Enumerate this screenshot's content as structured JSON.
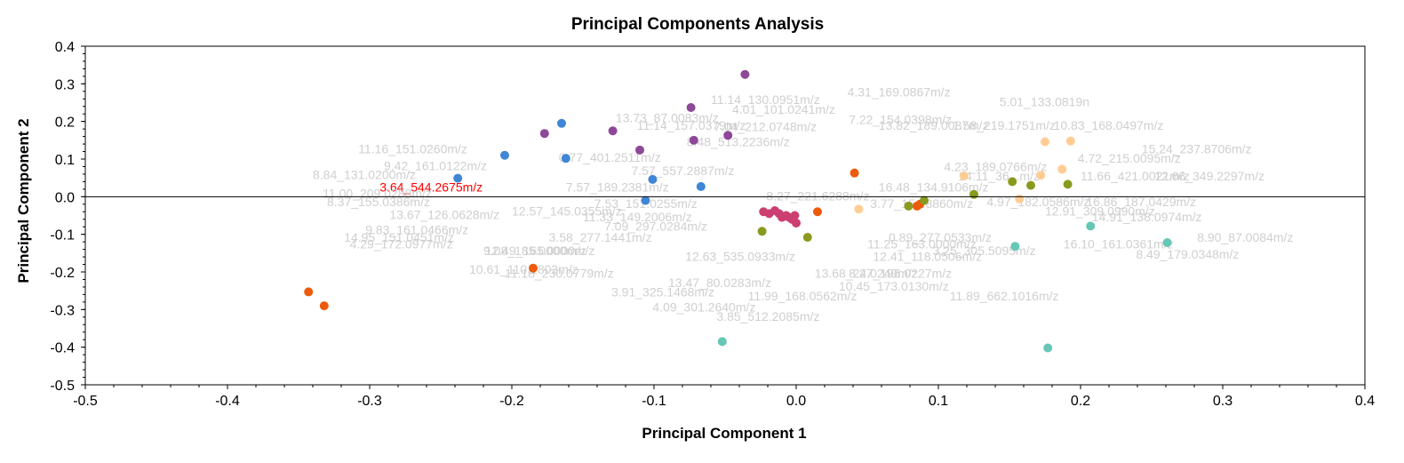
{
  "chart_data": {
    "type": "scatter",
    "title": "Principal Components Analysis",
    "xlabel": "Principal Component 1",
    "ylabel": "Principal Component 2",
    "xlim": [
      -0.5,
      0.4
    ],
    "ylim": [
      -0.5,
      0.4
    ],
    "xticks": [
      "-0.5",
      "-0.4",
      "-0.3",
      "-0.2",
      "-0.1",
      "0.0",
      "0.1",
      "0.2",
      "0.3",
      "0.4"
    ],
    "yticks": [
      "0.4",
      "0.3",
      "0.2",
      "0.1",
      "0.0",
      "-0.1",
      "-0.2",
      "-0.3",
      "-0.4",
      "-0.5"
    ],
    "grid": false,
    "legend": "none",
    "zero_line": true,
    "series": [
      {
        "color": "#8e4898",
        "points": [
          [
            -0.036,
            0.325
          ],
          [
            -0.074,
            0.237
          ],
          [
            -0.129,
            0.175
          ],
          [
            -0.177,
            0.168
          ],
          [
            -0.048,
            0.163
          ],
          [
            -0.072,
            0.15
          ],
          [
            -0.11,
            0.124
          ]
        ]
      },
      {
        "color": "#3f86d6",
        "points": [
          [
            -0.165,
            0.195
          ],
          [
            -0.205,
            0.11
          ],
          [
            -0.162,
            0.102
          ],
          [
            -0.238,
            0.049
          ],
          [
            -0.101,
            0.046
          ],
          [
            -0.067,
            0.027
          ],
          [
            -0.106,
            -0.01
          ]
        ]
      },
      {
        "color": "#ee5a0c",
        "points": [
          [
            -0.343,
            -0.253
          ],
          [
            -0.332,
            -0.29
          ],
          [
            -0.185,
            -0.19
          ],
          [
            0.041,
            0.063
          ],
          [
            0.015,
            -0.04
          ],
          [
            0.087,
            -0.02
          ],
          [
            0.085,
            -0.025
          ]
        ]
      },
      {
        "color": "#cc3f70",
        "points": [
          [
            -0.023,
            -0.04
          ],
          [
            -0.019,
            -0.045
          ],
          [
            -0.015,
            -0.037
          ],
          [
            -0.012,
            -0.045
          ],
          [
            -0.01,
            -0.055
          ],
          [
            -0.007,
            -0.05
          ],
          [
            -0.005,
            -0.055
          ],
          [
            -0.003,
            -0.06
          ],
          [
            -0.001,
            -0.05
          ],
          [
            0.0,
            -0.07
          ]
        ]
      },
      {
        "color": "#8a9a1e",
        "points": [
          [
            -0.024,
            -0.092
          ],
          [
            0.008,
            -0.108
          ],
          [
            0.079,
            -0.025
          ],
          [
            0.09,
            -0.01
          ],
          [
            0.125,
            0.006
          ],
          [
            0.152,
            0.04
          ],
          [
            0.165,
            0.03
          ],
          [
            0.191,
            0.033
          ]
        ]
      },
      {
        "color": "#ffcd94",
        "points": [
          [
            0.044,
            -0.033
          ],
          [
            0.118,
            0.055
          ],
          [
            0.157,
            -0.006
          ],
          [
            0.172,
            0.057
          ],
          [
            0.187,
            0.073
          ],
          [
            0.175,
            0.146
          ],
          [
            0.193,
            0.148
          ]
        ]
      },
      {
        "color": "#66c7b6",
        "points": [
          [
            -0.052,
            -0.385
          ],
          [
            0.154,
            -0.132
          ],
          [
            0.177,
            -0.402
          ],
          [
            0.207,
            -0.078
          ],
          [
            0.261,
            -0.122
          ]
        ]
      }
    ],
    "annotations": [
      {
        "text": "11.14_130.0951m/z",
        "x": -0.06,
        "y": 0.247
      },
      {
        "text": "4.01_101.0241m/z",
        "x": -0.045,
        "y": 0.22
      },
      {
        "text": "4.31_169.0867m/z",
        "x": 0.036,
        "y": 0.267
      },
      {
        "text": "5.01_133.0819n",
        "x": 0.143,
        "y": 0.24
      },
      {
        "text": "13.73_87.0083m/z",
        "x": -0.127,
        "y": 0.198
      },
      {
        "text": "7.22_154.0398m/z",
        "x": 0.037,
        "y": 0.193
      },
      {
        "text": "11.14_157.0379m/z",
        "x": -0.112,
        "y": 0.178
      },
      {
        "text": "7.04_212.0748m/z",
        "x": -0.058,
        "y": 0.175
      },
      {
        "text": "10.83_168.0497m/z",
        "x": 0.181,
        "y": 0.178
      },
      {
        "text": "13.82_189.0087m/z",
        "x": 0.058,
        "y": 0.178
      },
      {
        "text": "1.58_219.1751m/z",
        "x": 0.11,
        "y": 0.178
      },
      {
        "text": "8.48_513.2236m/z",
        "x": -0.077,
        "y": 0.134
      },
      {
        "text": "15.24_237.8706m/z",
        "x": 0.243,
        "y": 0.115
      },
      {
        "text": "11.16_151.0260m/z",
        "x": -0.308,
        "y": 0.115
      },
      {
        "text": "0.77_401.2511m/z",
        "x": -0.167,
        "y": 0.093
      },
      {
        "text": "4.72_215.0095m/z",
        "x": 0.198,
        "y": 0.09
      },
      {
        "text": "9.42_161.0122m/z",
        "x": -0.29,
        "y": 0.07
      },
      {
        "text": "4.23_189.0766m/z",
        "x": 0.104,
        "y": 0.068
      },
      {
        "text": "8.84_131.0200m/z",
        "x": -0.34,
        "y": 0.047
      },
      {
        "text": "7.57_557.2887m/z",
        "x": -0.116,
        "y": 0.058
      },
      {
        "text": "14.11_36...m/z",
        "x": 0.114,
        "y": 0.043
      },
      {
        "text": "11.66_421.0021m/z",
        "x": 0.2,
        "y": 0.043
      },
      {
        "text": "12.66_349.2297m/z",
        "x": 0.252,
        "y": 0.043
      },
      {
        "text": "3.64_544.2675m/z",
        "x": -0.293,
        "y": 0.014,
        "highlight": true
      },
      {
        "text": "16.48_134.9106m/z",
        "x": 0.058,
        "y": 0.014
      },
      {
        "text": "8.27_221.6288m/z",
        "x": -0.021,
        "y": -0.01
      },
      {
        "text": "7.57_189.2381m/z",
        "x": -0.162,
        "y": 0.014
      },
      {
        "text": "11.00_209.0288m/z",
        "x": -0.333,
        "y": -0.003
      },
      {
        "text": "3.77_154.8860m/z",
        "x": 0.052,
        "y": -0.03
      },
      {
        "text": "8.37_155.0386m/z",
        "x": -0.33,
        "y": -0.025
      },
      {
        "text": "7.53_151.0255m/z",
        "x": -0.142,
        "y": -0.03
      },
      {
        "text": "12.57_145.0355m/z",
        "x": -0.2,
        "y": -0.05
      },
      {
        "text": "13.67_126.0628m/z",
        "x": -0.286,
        "y": -0.06
      },
      {
        "text": "4.97_182.0586m/z",
        "x": 0.134,
        "y": -0.025
      },
      {
        "text": "16.86_187.0429m/z",
        "x": 0.204,
        "y": -0.025
      },
      {
        "text": "11.33_149.2006m/z",
        "x": -0.15,
        "y": -0.065
      },
      {
        "text": "12.91_309.0990m/z",
        "x": 0.175,
        "y": -0.05
      },
      {
        "text": "7.09_297.0284m/z",
        "x": -0.135,
        "y": -0.09
      },
      {
        "text": "14.91_138.0974m/z",
        "x": 0.208,
        "y": -0.065
      },
      {
        "text": "9.83_161.0466m/z",
        "x": -0.303,
        "y": -0.1
      },
      {
        "text": "14.95_151.0451m/z",
        "x": -0.318,
        "y": -0.12
      },
      {
        "text": "4.29_172.0977m/z",
        "x": -0.314,
        "y": -0.137
      },
      {
        "text": "3.58_277.1441m/z",
        "x": -0.174,
        "y": -0.12
      },
      {
        "text": "11.25_163.0000m/z",
        "x": 0.05,
        "y": -0.137
      },
      {
        "text": "0.89_277.0533m/z",
        "x": 0.065,
        "y": -0.12
      },
      {
        "text": "12.41_118.0506m/z",
        "x": 0.054,
        "y": -0.17
      },
      {
        "text": "12.49_165.0000m/z",
        "x": -0.219,
        "y": -0.155
      },
      {
        "text": "9.08_185.0000m/z",
        "x": -0.22,
        "y": -0.155
      },
      {
        "text": "3.25_305.5095m/z",
        "x": 0.096,
        "y": -0.155
      },
      {
        "text": "12.63_535.0933m/z",
        "x": -0.078,
        "y": -0.17
      },
      {
        "text": "16.10_161.0361m/z",
        "x": 0.188,
        "y": -0.137
      },
      {
        "text": "8.90_87.0084m/z",
        "x": 0.282,
        "y": -0.12
      },
      {
        "text": "8.49_179.0348m/z",
        "x": 0.239,
        "y": -0.165
      },
      {
        "text": "10.61_110.1803m/z",
        "x": -0.23,
        "y": -0.205
      },
      {
        "text": "11.18_230.0779m/z",
        "x": -0.205,
        "y": -0.215
      },
      {
        "text": "13.68_24.0240m/z",
        "x": 0.013,
        "y": -0.215
      },
      {
        "text": "8.27_196.0227m/z",
        "x": 0.037,
        "y": -0.215
      },
      {
        "text": "13.47_80.0283m/z",
        "x": -0.09,
        "y": -0.24
      },
      {
        "text": "10.45_173.0130m/z",
        "x": 0.03,
        "y": -0.25
      },
      {
        "text": "3.91_325.1468m/z",
        "x": -0.13,
        "y": -0.265
      },
      {
        "text": "11.99_168.0562m/z",
        "x": -0.034,
        "y": -0.275
      },
      {
        "text": "11.89_662.1016m/z",
        "x": 0.108,
        "y": -0.275
      },
      {
        "text": "4.09_301.2640m/z",
        "x": -0.101,
        "y": -0.305
      },
      {
        "text": "3.85_512.2085m/z",
        "x": -0.056,
        "y": -0.33
      }
    ]
  }
}
